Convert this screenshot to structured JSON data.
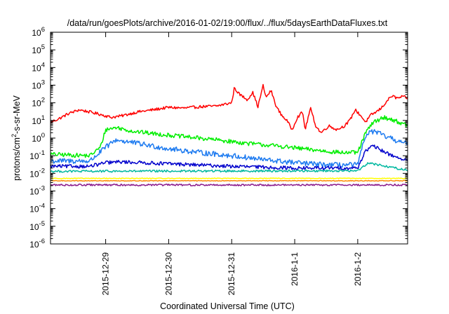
{
  "chart_data": {
    "type": "line",
    "title": "/data/run/goesPlots/archive/2016-01-02/19:00/flux/../flux/5daysEarthDataFluxes.txt",
    "xlabel": "Coordinated Universal Time (UTC)",
    "ylabel": {
      "prefix": "protons/cm",
      "sup": "2",
      "suffix": "-s-sr-MeV"
    },
    "y_scale": "log",
    "ylim": [
      1e-06,
      1000000.0
    ],
    "y_ticks": [
      {
        "value": 1e-06,
        "base": "10",
        "exp": "-6"
      },
      {
        "value": 1e-05,
        "base": "10",
        "exp": "-5"
      },
      {
        "value": 0.0001,
        "base": "10",
        "exp": "-4"
      },
      {
        "value": 0.001,
        "base": "10",
        "exp": "-3"
      },
      {
        "value": 0.01,
        "base": "10",
        "exp": "-2"
      },
      {
        "value": 0.1,
        "base": "10",
        "exp": "-1"
      },
      {
        "value": 1,
        "base": "10",
        "exp": "0"
      },
      {
        "value": 10,
        "base": "10",
        "exp": "1"
      },
      {
        "value": 100,
        "base": "10",
        "exp": "2"
      },
      {
        "value": 1000,
        "base": "10",
        "exp": "3"
      },
      {
        "value": 10000,
        "base": "10",
        "exp": "4"
      },
      {
        "value": 100000,
        "base": "10",
        "exp": "5"
      },
      {
        "value": 1000000,
        "base": "10",
        "exp": "6"
      }
    ],
    "xlim": [
      "2015-12-28 03:00",
      "2016-01-02 19:00"
    ],
    "x_ticks": [
      {
        "value": "2015-12-29 00:00",
        "label": "2015-12-29"
      },
      {
        "value": "2015-12-30 00:00",
        "label": "2015-12-30"
      },
      {
        "value": "2015-12-31 00:00",
        "label": "2015-12-31"
      },
      {
        "value": "2016-01-01 00:00",
        "label": "2016-1-1"
      },
      {
        "value": "2016-01-02 00:00",
        "label": "2016-1-2"
      }
    ],
    "grid": false,
    "legend": "none",
    "series": [
      {
        "color": "#ff0000",
        "noise": 0.08,
        "points": [
          [
            "2015-12-28 03:00",
            8
          ],
          [
            "2015-12-28 06:00",
            12
          ],
          [
            "2015-12-28 10:00",
            25
          ],
          [
            "2015-12-28 14:00",
            40
          ],
          [
            "2015-12-28 18:00",
            30
          ],
          [
            "2015-12-28 22:00",
            22
          ],
          [
            "2015-12-29 02:00",
            15
          ],
          [
            "2015-12-29 06:00",
            18
          ],
          [
            "2015-12-29 12:00",
            30
          ],
          [
            "2015-12-29 18:00",
            40
          ],
          [
            "2015-12-30 00:00",
            55
          ],
          [
            "2015-12-30 06:00",
            50
          ],
          [
            "2015-12-30 12:00",
            60
          ],
          [
            "2015-12-30 18:00",
            65
          ],
          [
            "2015-12-31 00:00",
            100
          ],
          [
            "2015-12-31 01:00",
            700
          ],
          [
            "2015-12-31 03:00",
            300
          ],
          [
            "2015-12-31 06:00",
            150
          ],
          [
            "2015-12-31 08:00",
            400
          ],
          [
            "2015-12-31 10:00",
            60
          ],
          [
            "2015-12-31 12:00",
            1000
          ],
          [
            "2015-12-31 13:00",
            200
          ],
          [
            "2015-12-31 15:00",
            500
          ],
          [
            "2015-12-31 17:00",
            60
          ],
          [
            "2015-12-31 19:00",
            20
          ],
          [
            "2015-12-31 21:00",
            10
          ],
          [
            "2015-12-31 23:00",
            3
          ],
          [
            "2016-01-01 01:00",
            15
          ],
          [
            "2016-01-01 03:00",
            30
          ],
          [
            "2016-01-01 04:00",
            3
          ],
          [
            "2016-01-01 06:00",
            50
          ],
          [
            "2016-01-01 08:00",
            5
          ],
          [
            "2016-01-01 10:00",
            2
          ],
          [
            "2016-01-01 13:00",
            5
          ],
          [
            "2016-01-01 16:00",
            3
          ],
          [
            "2016-01-01 19:00",
            5
          ],
          [
            "2016-01-01 21:00",
            10
          ],
          [
            "2016-01-01 23:00",
            40
          ],
          [
            "2016-01-02 01:00",
            20
          ],
          [
            "2016-01-02 03:00",
            8
          ],
          [
            "2016-01-02 05:00",
            20
          ],
          [
            "2016-01-02 07:00",
            30
          ],
          [
            "2016-01-02 09:00",
            50
          ],
          [
            "2016-01-02 11:00",
            120
          ],
          [
            "2016-01-02 13:00",
            250
          ],
          [
            "2016-01-02 15:00",
            180
          ],
          [
            "2016-01-02 17:00",
            220
          ],
          [
            "2016-01-02 19:00",
            190
          ]
        ]
      },
      {
        "color": "#00ee00",
        "noise": 0.12,
        "points": [
          [
            "2015-12-28 03:00",
            0.12
          ],
          [
            "2015-12-28 18:00",
            0.1
          ],
          [
            "2015-12-28 22:00",
            0.3
          ],
          [
            "2015-12-29 00:00",
            3
          ],
          [
            "2015-12-29 04:00",
            4
          ],
          [
            "2015-12-29 10:00",
            2.5
          ],
          [
            "2015-12-29 18:00",
            1.8
          ],
          [
            "2015-12-30 06:00",
            1.2
          ],
          [
            "2015-12-30 18:00",
            0.8
          ],
          [
            "2015-12-31 06:00",
            0.5
          ],
          [
            "2015-12-31 18:00",
            0.35
          ],
          [
            "2016-01-01 06:00",
            0.22
          ],
          [
            "2016-01-01 18:00",
            0.15
          ],
          [
            "2016-01-02 00:00",
            0.15
          ],
          [
            "2016-01-02 03:00",
            2
          ],
          [
            "2016-01-02 06:00",
            8
          ],
          [
            "2016-01-02 10:00",
            15
          ],
          [
            "2016-01-02 14:00",
            10
          ],
          [
            "2016-01-02 19:00",
            5
          ]
        ]
      },
      {
        "color": "#1e7bf0",
        "noise": 0.15,
        "points": [
          [
            "2015-12-28 03:00",
            0.05
          ],
          [
            "2015-12-28 18:00",
            0.05
          ],
          [
            "2015-12-29 00:00",
            0.3
          ],
          [
            "2015-12-29 04:00",
            0.8
          ],
          [
            "2015-12-29 12:00",
            0.5
          ],
          [
            "2015-12-30 00:00",
            0.25
          ],
          [
            "2015-12-30 12:00",
            0.15
          ],
          [
            "2015-12-31 00:00",
            0.1
          ],
          [
            "2015-12-31 12:00",
            0.06
          ],
          [
            "2016-01-01 00:00",
            0.04
          ],
          [
            "2016-01-01 12:00",
            0.03
          ],
          [
            "2016-01-02 00:00",
            0.03
          ],
          [
            "2016-01-02 03:00",
            1.5
          ],
          [
            "2016-01-02 06:00",
            2.5
          ],
          [
            "2016-01-02 12:00",
            1
          ],
          [
            "2016-01-02 19:00",
            0.45
          ]
        ]
      },
      {
        "color": "#0000cc",
        "noise": 0.1,
        "points": [
          [
            "2015-12-28 03:00",
            0.025
          ],
          [
            "2015-12-28 18:00",
            0.025
          ],
          [
            "2015-12-29 00:00",
            0.04
          ],
          [
            "2015-12-29 06:00",
            0.045
          ],
          [
            "2015-12-30 00:00",
            0.035
          ],
          [
            "2015-12-31 00:00",
            0.025
          ],
          [
            "2016-01-01 00:00",
            0.02
          ],
          [
            "2016-01-02 00:00",
            0.02
          ],
          [
            "2016-01-02 03:00",
            0.2
          ],
          [
            "2016-01-02 06:00",
            0.35
          ],
          [
            "2016-01-02 12:00",
            0.12
          ],
          [
            "2016-01-02 19:00",
            0.05
          ]
        ]
      },
      {
        "color": "#00b8a0",
        "noise": 0.06,
        "points": [
          [
            "2015-12-28 03:00",
            0.013
          ],
          [
            "2016-01-02 00:00",
            0.014
          ],
          [
            "2016-01-02 04:00",
            0.04
          ],
          [
            "2016-01-02 08:00",
            0.03
          ],
          [
            "2016-01-02 19:00",
            0.015
          ]
        ]
      },
      {
        "color": "#ffff00",
        "noise": 0.02,
        "points": [
          [
            "2015-12-28 03:00",
            0.0052
          ],
          [
            "2016-01-02 19:00",
            0.0052
          ]
        ]
      },
      {
        "color": "#ff8c00",
        "noise": 0.02,
        "points": [
          [
            "2015-12-28 03:00",
            0.0038
          ],
          [
            "2016-01-02 19:00",
            0.0038
          ]
        ]
      },
      {
        "color": "#8b1a8b",
        "noise": 0.05,
        "points": [
          [
            "2015-12-28 03:00",
            0.0022
          ],
          [
            "2016-01-02 19:00",
            0.0022
          ]
        ]
      }
    ]
  }
}
